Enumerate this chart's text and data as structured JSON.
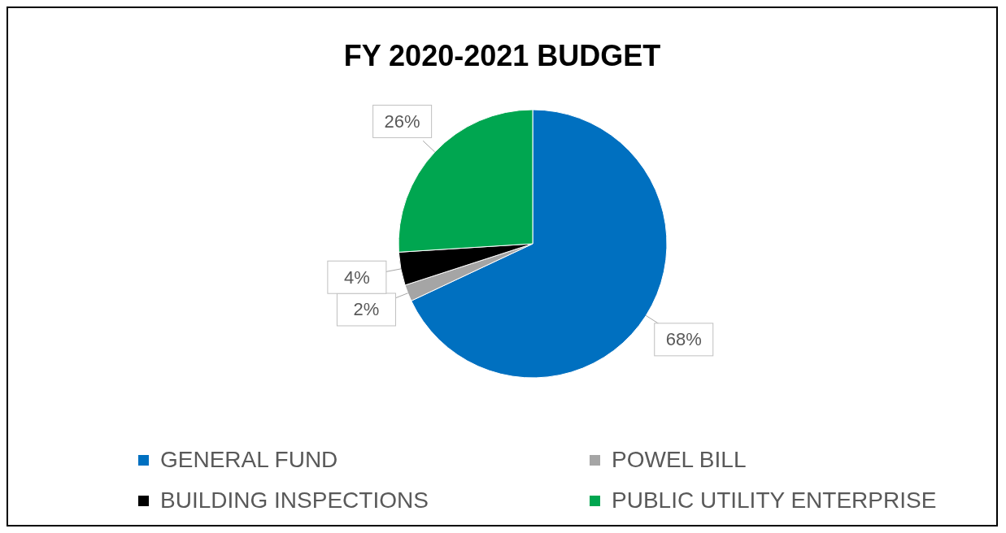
{
  "chart_data": {
    "type": "pie",
    "title": "FY 2020-2021 BUDGET",
    "categories": [
      "GENERAL FUND",
      "POWEL BILL",
      "BUILDING INSPECTIONS",
      "PUBLIC UTILITY ENTERPRISE"
    ],
    "values": [
      68,
      2,
      4,
      26
    ],
    "colors": [
      "#0070c0",
      "#a5a5a5",
      "#000000",
      "#00a650"
    ],
    "value_labels": [
      "68%",
      "2%",
      "4%",
      "26%"
    ],
    "legend": "bottom"
  }
}
